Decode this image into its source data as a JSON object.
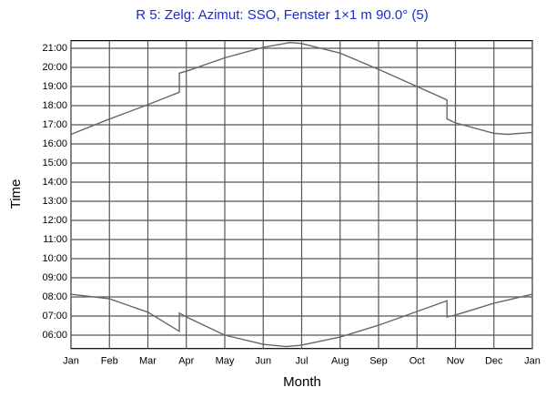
{
  "chart_data": {
    "type": "line",
    "title": "R 5: Zelg: Azimut: SSO, Fenster 1×1 m  90.0° (5)",
    "x_label": "Month",
    "y_label": "Time",
    "xlim": [
      0,
      12
    ],
    "xticks": [
      {
        "value": 0,
        "label": "Jan"
      },
      {
        "value": 1,
        "label": "Feb"
      },
      {
        "value": 2,
        "label": "Mar"
      },
      {
        "value": 3,
        "label": "Apr"
      },
      {
        "value": 4,
        "label": "May"
      },
      {
        "value": 5,
        "label": "Jun"
      },
      {
        "value": 6,
        "label": "Jul"
      },
      {
        "value": 7,
        "label": "Aug"
      },
      {
        "value": 8,
        "label": "Sep"
      },
      {
        "value": 9,
        "label": "Oct"
      },
      {
        "value": 10,
        "label": "Nov"
      },
      {
        "value": 11,
        "label": "Dec"
      },
      {
        "value": 12,
        "label": "Jan"
      }
    ],
    "ylim": [
      5.3,
      21.4
    ],
    "yticks": [
      {
        "value": 6,
        "label": "06:00"
      },
      {
        "value": 7,
        "label": "07:00"
      },
      {
        "value": 8,
        "label": "08:00"
      },
      {
        "value": 9,
        "label": "09:00"
      },
      {
        "value": 10,
        "label": "10:00"
      },
      {
        "value": 11,
        "label": "11:00"
      },
      {
        "value": 12,
        "label": "12:00"
      },
      {
        "value": 13,
        "label": "13:00"
      },
      {
        "value": 14,
        "label": "14:00"
      },
      {
        "value": 15,
        "label": "15:00"
      },
      {
        "value": 16,
        "label": "16:00"
      },
      {
        "value": 17,
        "label": "17:00"
      },
      {
        "value": 18,
        "label": "18:00"
      },
      {
        "value": 19,
        "label": "19:00"
      },
      {
        "value": 20,
        "label": "20:00"
      },
      {
        "value": 21,
        "label": "21:00"
      }
    ],
    "grid": true,
    "series": [
      {
        "color": "#666666",
        "x": [
          0,
          1,
          2,
          2.82,
          2.82,
          3,
          4,
          5,
          5.7,
          6,
          7,
          8,
          9,
          9.78,
          9.78,
          10,
          11,
          11.35,
          12
        ],
        "values": [
          16.5,
          17.3,
          18.05,
          18.7,
          19.7,
          19.8,
          20.5,
          21.05,
          21.3,
          21.25,
          20.75,
          19.9,
          19.0,
          18.3,
          17.3,
          17.1,
          16.55,
          16.5,
          16.6
        ]
      },
      {
        "color": "#666666",
        "x": [
          0,
          1,
          2,
          2.82,
          2.82,
          3,
          4,
          5,
          5.6,
          6,
          7,
          8,
          9,
          9.78,
          9.78,
          10,
          11,
          12
        ],
        "values": [
          8.14,
          7.9,
          7.2,
          6.2,
          7.15,
          6.95,
          6.0,
          5.52,
          5.4,
          5.48,
          5.9,
          6.52,
          7.24,
          7.8,
          6.95,
          7.05,
          7.67,
          8.14
        ]
      }
    ]
  }
}
